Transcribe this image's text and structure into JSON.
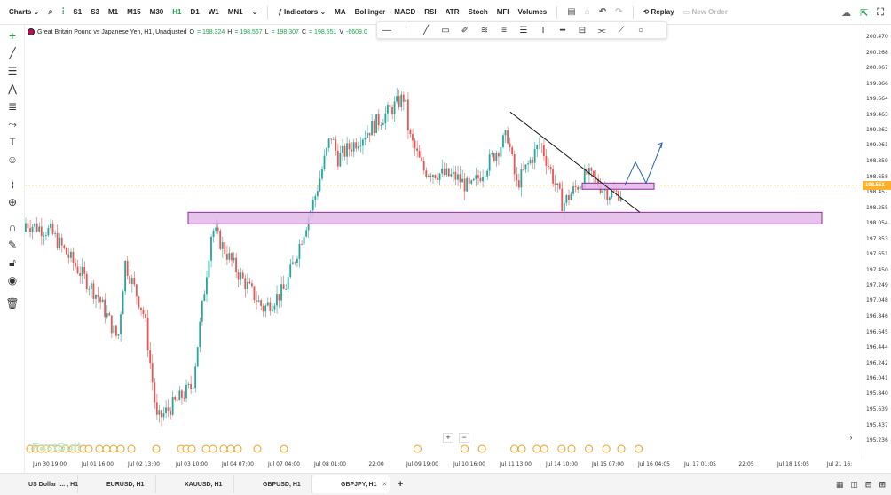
{
  "toolbar": {
    "charts_label": "Charts",
    "timeframes": [
      "S1",
      "S3",
      "M1",
      "M15",
      "M30",
      "H1",
      "D1",
      "W1",
      "MN1"
    ],
    "active_timeframe": "H1",
    "indicators_label": "Indicators",
    "indicator_items": [
      "MA",
      "Bollinger",
      "MACD",
      "RSI",
      "ATR",
      "Stoch",
      "MFI",
      "Volumes"
    ],
    "replay_label": "Replay",
    "new_order_label": "New Order",
    "accent_color": "#1aa34a"
  },
  "legend": {
    "symbol_title": "Great Britain Pound vs Japanese Yen, H1, Unadjusted",
    "o_label": "O",
    "o_value": "= 198.324",
    "h_label": "H",
    "h_value": "= 198.567",
    "l_label": "L",
    "l_value": "= 198.307",
    "c_label": "C",
    "c_value": "= 198.551",
    "v_label": "V",
    "v_value": "-6609.0"
  },
  "price_axis": {
    "labels": [
      "200.470",
      "200.268",
      "200.067",
      "199.866",
      "199.664",
      "199.463",
      "199.262",
      "199.061",
      "198.859",
      "198.658",
      "198.457",
      "198.255",
      "198.054",
      "197.853",
      "197.651",
      "197.450",
      "197.249",
      "197.048",
      "196.846",
      "196.645",
      "196.444",
      "196.242",
      "196.041",
      "195.840",
      "195.639",
      "195.437",
      "195.236"
    ],
    "current_price": "198.551",
    "current_price_color": "#ffb02e"
  },
  "time_axis": {
    "labels": [
      "Jun 30 19:00",
      "Jul 01 16:00",
      "Jul 02 13:00",
      "Jul 03 10:00",
      "Jul 04 07:00",
      "Jul 07 04:00",
      "Jul 08 01:00",
      "22:00",
      "Jul 09 19:00",
      "Jul 10 16:00",
      "Jul 11 13:00",
      "Jul 14 10:00",
      "Jul 15 07:00",
      "Jul 16 04:05",
      "Jul 17 01:05",
      "22:05",
      "Jul 18 19:05",
      "Jul 21 16:"
    ]
  },
  "chart_data": {
    "type": "candlestick",
    "symbol": "GBPJPY",
    "timeframe": "H1",
    "ylim": [
      195.236,
      200.47
    ],
    "up_color": "#26a69a",
    "down_color": "#ef5350",
    "pivots": [
      {
        "t": "Jun 30 19:00",
        "price": 197.95
      },
      {
        "t": "Jul 01 16:00",
        "price": 197.1
      },
      {
        "t": "Jul 01 23:00",
        "price": 196.55
      },
      {
        "t": "Jul 02 05:00",
        "price": 197.55
      },
      {
        "t": "Jul 02 13:00",
        "price": 196.85
      },
      {
        "t": "Jul 02 18:00",
        "price": 195.5
      },
      {
        "t": "Jul 03 10:00",
        "price": 195.95
      },
      {
        "t": "Jul 03 17:00",
        "price": 198.0
      },
      {
        "t": "Jul 04 07:00",
        "price": 197.4
      },
      {
        "t": "Jul 04 22:00",
        "price": 196.95
      },
      {
        "t": "Jul 07 04:00",
        "price": 197.2
      },
      {
        "t": "Jul 07 16:00",
        "price": 198.4
      },
      {
        "t": "Jul 08 01:00",
        "price": 199.2
      },
      {
        "t": "Jul 08 12:00",
        "price": 198.9
      },
      {
        "t": "Jul 08 22:00",
        "price": 199.7
      },
      {
        "t": "Jul 09 08:00",
        "price": 199.2
      },
      {
        "t": "Jul 09 19:00",
        "price": 198.75
      },
      {
        "t": "Jul 10 04:00",
        "price": 198.65
      },
      {
        "t": "Jul 10 16:00",
        "price": 198.5
      },
      {
        "t": "Jul 11 03:00",
        "price": 199.2
      },
      {
        "t": "Jul 11 13:00",
        "price": 198.55
      },
      {
        "t": "Jul 11 22:00",
        "price": 199.1
      },
      {
        "t": "Jul 14 10:00",
        "price": 198.3
      },
      {
        "t": "Jul 14 20:00",
        "price": 198.7
      },
      {
        "t": "Jul 15 07:00",
        "price": 198.45
      }
    ],
    "zones": [
      {
        "from": "Jul 03 10:00",
        "to": "Jul 21 16:00",
        "low": 198.05,
        "high": 198.2,
        "color": "#e1b8e8"
      },
      {
        "from": "Jul 14 20:00",
        "to": "Jul 16 04:05",
        "low": 198.5,
        "high": 198.58,
        "color": "#e1b8e8"
      }
    ],
    "trendline": {
      "from": {
        "t": "Jul 11 13:00",
        "price": 199.5
      },
      "to": {
        "t": "Jul 16 04:05",
        "price": 198.2
      },
      "color": "#111111"
    },
    "projection": {
      "points": [
        198.55,
        198.85,
        198.58,
        199.1
      ],
      "color": "#1f5fbf"
    }
  },
  "tabs": [
    {
      "label": "US Dollar I... , H1"
    },
    {
      "label": "EURUSD, H1"
    },
    {
      "label": "XAUUSD, H1"
    },
    {
      "label": "GBPUSD, H1"
    },
    {
      "label": "GBPJPY, H1",
      "active": true
    }
  ],
  "watermark": "FastBull",
  "zoom": {
    "plus": "+",
    "minus": "−"
  }
}
